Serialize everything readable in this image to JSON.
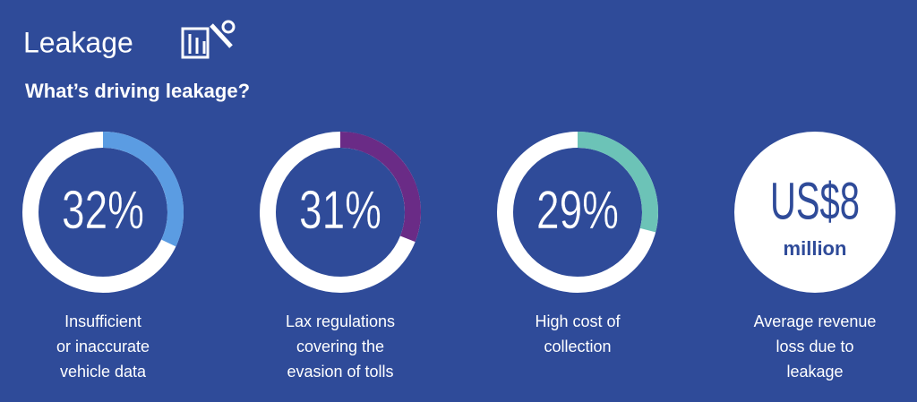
{
  "header": {
    "title": "Leakage",
    "subtitle": "What’s driving leakage?"
  },
  "items": [
    {
      "value": 32,
      "value_label": "32%",
      "color": "#5b9ce2",
      "caption": [
        "Insufficient",
        "or inaccurate",
        "vehicle data"
      ]
    },
    {
      "value": 31,
      "value_label": "31%",
      "color": "#6a2b86",
      "caption": [
        "Lax regulations",
        "covering the",
        "evasion of tolls"
      ]
    },
    {
      "value": 29,
      "value_label": "29%",
      "color": "#6cc3b7",
      "caption": [
        "High cost of",
        "collection"
      ]
    }
  ],
  "summary": {
    "amount": "US$8",
    "unit": "million",
    "caption": [
      "Average revenue",
      "loss due to",
      "leakage"
    ]
  }
}
